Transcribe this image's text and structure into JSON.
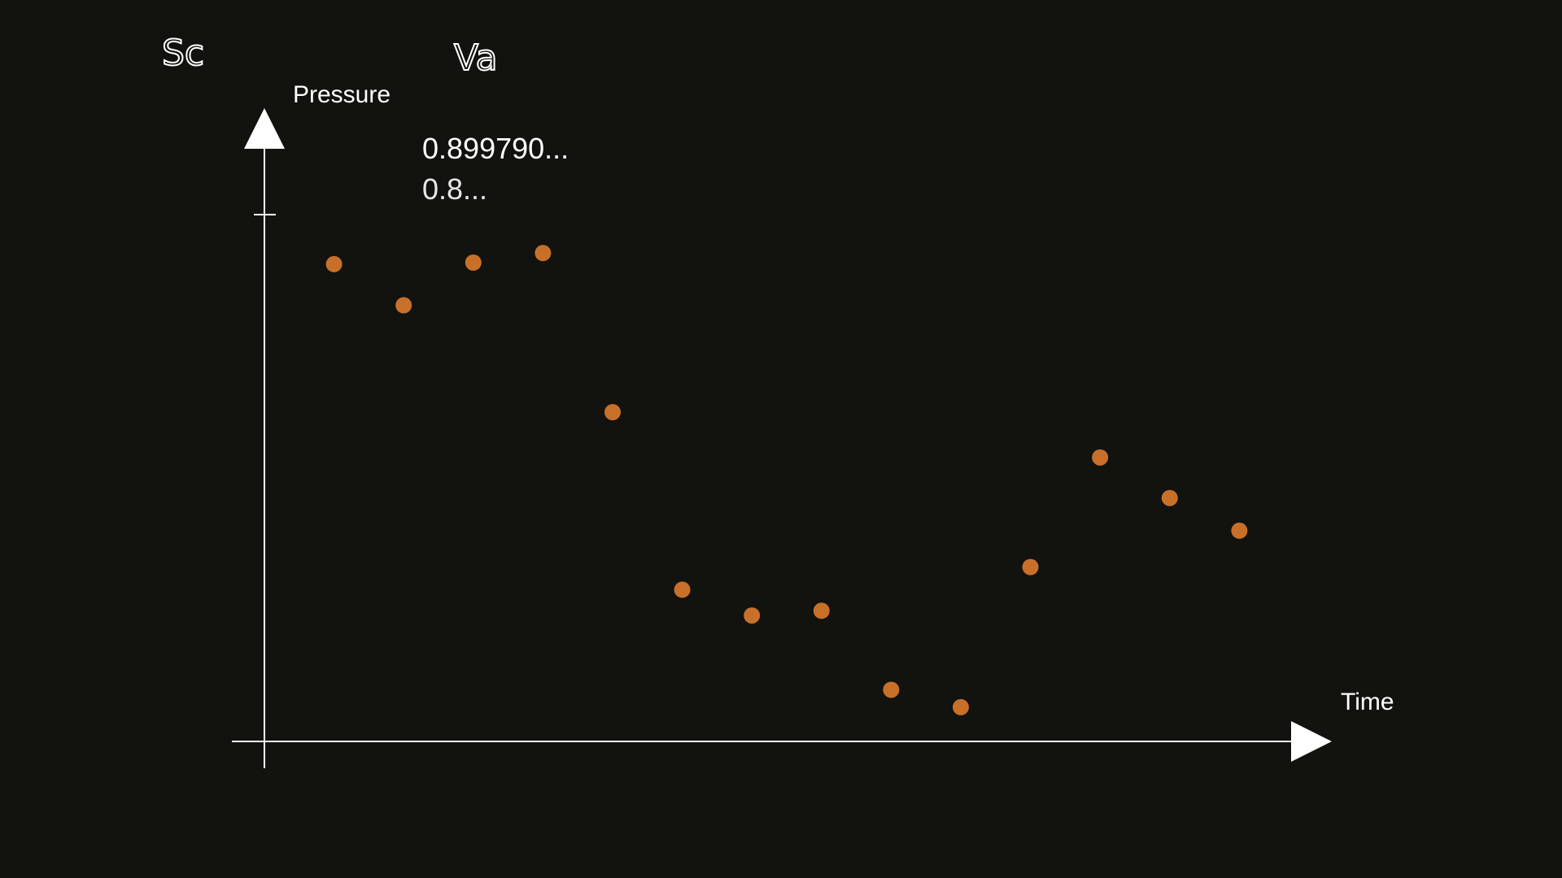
{
  "chart_data": {
    "type": "scatter",
    "title": "",
    "xlabel": "Time",
    "ylabel": "Pressure",
    "xlim": [
      0,
      16
    ],
    "ylim": [
      0,
      1
    ],
    "grid": false,
    "legend": "none",
    "y_ticks": [
      1
    ],
    "x": [
      1,
      2,
      3,
      4,
      5,
      6,
      7,
      8,
      9,
      10,
      11,
      12,
      13,
      14
    ],
    "series": [
      {
        "values": [
          0.906,
          0.828,
          0.909,
          0.927,
          0.625,
          0.288,
          0.239,
          0.248,
          0.098,
          0.065,
          0.331,
          0.539,
          0.462,
          0.4
        ]
      }
    ],
    "color": "#c8702a",
    "axis_color": "#ffffff",
    "background": "#12120f",
    "annotations": {
      "left_header": "Sc",
      "right_header": "Va",
      "readout_value": "0.899790...",
      "readout_value_partial": "0.8..."
    }
  }
}
